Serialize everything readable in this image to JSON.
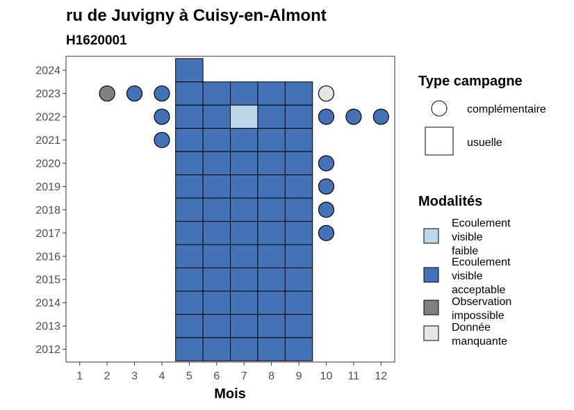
{
  "chart_data": {
    "type": "heatmap",
    "title": "ru de Juvigny à Cuisy-en-Almont",
    "subtitle": "H1620001",
    "xlabel": "Mois",
    "ylabel": "",
    "x_ticks": [
      "1",
      "2",
      "3",
      "4",
      "5",
      "6",
      "7",
      "8",
      "9",
      "10",
      "11",
      "12"
    ],
    "y_ticks": [
      "2024",
      "2023",
      "2022",
      "2021",
      "2020",
      "2019",
      "2018",
      "2017",
      "2016",
      "2015",
      "2014",
      "2013",
      "2012"
    ],
    "xlim": [
      0.5,
      12.5
    ],
    "ylim": [
      2011.45,
      2024.6
    ],
    "grid": false,
    "legend_position": "right",
    "legend_campaign": {
      "title": "Type campagne",
      "items": [
        {
          "key": "complementaire",
          "label": "complémentaire",
          "shape": "circle"
        },
        {
          "key": "usuelle",
          "label": "usuelle",
          "shape": "square"
        }
      ]
    },
    "legend_modalities": {
      "title": "Modalités",
      "items": [
        {
          "key": "faible",
          "lines": [
            "Ecoulement",
            "visible",
            "faible"
          ],
          "color": "#bcd7e8"
        },
        {
          "key": "acceptable",
          "lines": [
            "Ecoulement",
            "visible",
            "acceptable"
          ],
          "color": "#4372b6"
        },
        {
          "key": "impossible",
          "lines": [
            "Observation",
            "impossible"
          ],
          "color": "#808080"
        },
        {
          "key": "manquante",
          "lines": [
            "Donnée",
            "manquante"
          ],
          "color": "#e6e6e6"
        }
      ]
    },
    "usuelle": [
      {
        "year": 2024,
        "month": 5,
        "mod": "acceptable"
      },
      {
        "year": 2023,
        "month": 5,
        "mod": "acceptable"
      },
      {
        "year": 2023,
        "month": 6,
        "mod": "acceptable"
      },
      {
        "year": 2023,
        "month": 7,
        "mod": "acceptable"
      },
      {
        "year": 2023,
        "month": 8,
        "mod": "acceptable"
      },
      {
        "year": 2023,
        "month": 9,
        "mod": "acceptable"
      },
      {
        "year": 2022,
        "month": 5,
        "mod": "acceptable"
      },
      {
        "year": 2022,
        "month": 6,
        "mod": "acceptable"
      },
      {
        "year": 2022,
        "month": 7,
        "mod": "faible"
      },
      {
        "year": 2022,
        "month": 8,
        "mod": "acceptable"
      },
      {
        "year": 2022,
        "month": 9,
        "mod": "acceptable"
      },
      {
        "year": 2021,
        "month": 5,
        "mod": "acceptable"
      },
      {
        "year": 2021,
        "month": 6,
        "mod": "acceptable"
      },
      {
        "year": 2021,
        "month": 7,
        "mod": "acceptable"
      },
      {
        "year": 2021,
        "month": 8,
        "mod": "acceptable"
      },
      {
        "year": 2021,
        "month": 9,
        "mod": "acceptable"
      },
      {
        "year": 2020,
        "month": 5,
        "mod": "acceptable"
      },
      {
        "year": 2020,
        "month": 6,
        "mod": "acceptable"
      },
      {
        "year": 2020,
        "month": 7,
        "mod": "acceptable"
      },
      {
        "year": 2020,
        "month": 8,
        "mod": "acceptable"
      },
      {
        "year": 2020,
        "month": 9,
        "mod": "acceptable"
      },
      {
        "year": 2019,
        "month": 5,
        "mod": "acceptable"
      },
      {
        "year": 2019,
        "month": 6,
        "mod": "acceptable"
      },
      {
        "year": 2019,
        "month": 7,
        "mod": "acceptable"
      },
      {
        "year": 2019,
        "month": 8,
        "mod": "acceptable"
      },
      {
        "year": 2019,
        "month": 9,
        "mod": "acceptable"
      },
      {
        "year": 2018,
        "month": 5,
        "mod": "acceptable"
      },
      {
        "year": 2018,
        "month": 6,
        "mod": "acceptable"
      },
      {
        "year": 2018,
        "month": 7,
        "mod": "acceptable"
      },
      {
        "year": 2018,
        "month": 8,
        "mod": "acceptable"
      },
      {
        "year": 2018,
        "month": 9,
        "mod": "acceptable"
      },
      {
        "year": 2017,
        "month": 5,
        "mod": "acceptable"
      },
      {
        "year": 2017,
        "month": 6,
        "mod": "acceptable"
      },
      {
        "year": 2017,
        "month": 7,
        "mod": "acceptable"
      },
      {
        "year": 2017,
        "month": 8,
        "mod": "acceptable"
      },
      {
        "year": 2017,
        "month": 9,
        "mod": "acceptable"
      },
      {
        "year": 2016,
        "month": 5,
        "mod": "acceptable"
      },
      {
        "year": 2016,
        "month": 6,
        "mod": "acceptable"
      },
      {
        "year": 2016,
        "month": 7,
        "mod": "acceptable"
      },
      {
        "year": 2016,
        "month": 8,
        "mod": "acceptable"
      },
      {
        "year": 2016,
        "month": 9,
        "mod": "acceptable"
      },
      {
        "year": 2015,
        "month": 5,
        "mod": "acceptable"
      },
      {
        "year": 2015,
        "month": 6,
        "mod": "acceptable"
      },
      {
        "year": 2015,
        "month": 7,
        "mod": "acceptable"
      },
      {
        "year": 2015,
        "month": 8,
        "mod": "acceptable"
      },
      {
        "year": 2015,
        "month": 9,
        "mod": "acceptable"
      },
      {
        "year": 2014,
        "month": 5,
        "mod": "acceptable"
      },
      {
        "year": 2014,
        "month": 6,
        "mod": "acceptable"
      },
      {
        "year": 2014,
        "month": 7,
        "mod": "acceptable"
      },
      {
        "year": 2014,
        "month": 8,
        "mod": "acceptable"
      },
      {
        "year": 2014,
        "month": 9,
        "mod": "acceptable"
      },
      {
        "year": 2013,
        "month": 5,
        "mod": "acceptable"
      },
      {
        "year": 2013,
        "month": 6,
        "mod": "acceptable"
      },
      {
        "year": 2013,
        "month": 7,
        "mod": "acceptable"
      },
      {
        "year": 2013,
        "month": 8,
        "mod": "acceptable"
      },
      {
        "year": 2013,
        "month": 9,
        "mod": "acceptable"
      },
      {
        "year": 2012,
        "month": 5,
        "mod": "acceptable"
      },
      {
        "year": 2012,
        "month": 6,
        "mod": "acceptable"
      },
      {
        "year": 2012,
        "month": 7,
        "mod": "acceptable"
      },
      {
        "year": 2012,
        "month": 8,
        "mod": "acceptable"
      },
      {
        "year": 2012,
        "month": 9,
        "mod": "acceptable"
      }
    ],
    "complementaire": [
      {
        "year": 2023,
        "month": 2,
        "mod": "impossible"
      },
      {
        "year": 2023,
        "month": 3,
        "mod": "acceptable"
      },
      {
        "year": 2023,
        "month": 4,
        "mod": "acceptable"
      },
      {
        "year": 2023,
        "month": 10,
        "mod": "manquante"
      },
      {
        "year": 2022,
        "month": 4,
        "mod": "acceptable"
      },
      {
        "year": 2022,
        "month": 10,
        "mod": "acceptable"
      },
      {
        "year": 2022,
        "month": 11,
        "mod": "acceptable"
      },
      {
        "year": 2022,
        "month": 12,
        "mod": "acceptable"
      },
      {
        "year": 2021,
        "month": 4,
        "mod": "acceptable"
      },
      {
        "year": 2020,
        "month": 10,
        "mod": "acceptable"
      },
      {
        "year": 2019,
        "month": 10,
        "mod": "acceptable"
      },
      {
        "year": 2018,
        "month": 10,
        "mod": "acceptable"
      },
      {
        "year": 2017,
        "month": 10,
        "mod": "acceptable"
      }
    ]
  }
}
